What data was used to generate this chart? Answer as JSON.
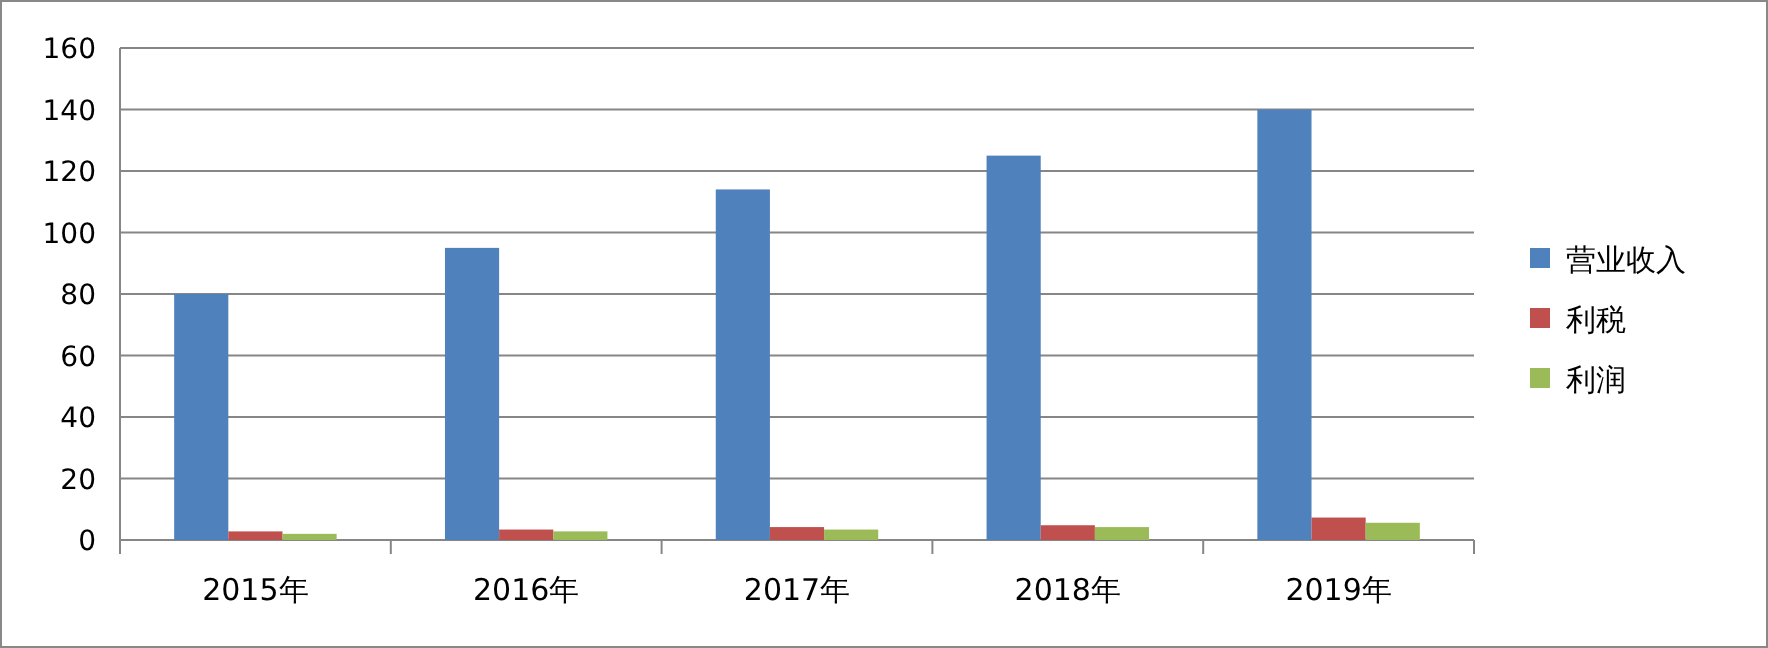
{
  "chart_data": {
    "type": "bar",
    "categories": [
      "2015年",
      "2016年",
      "2017年",
      "2018年",
      "2019年"
    ],
    "series": [
      {
        "name": "营业收入",
        "color": "#4f81bd",
        "values": [
          80,
          95,
          114,
          125,
          140
        ]
      },
      {
        "name": "利税",
        "color": "#c0504d",
        "values": [
          2.8,
          3.4,
          4.2,
          4.8,
          7.3
        ]
      },
      {
        "name": "利润",
        "color": "#9bbb59",
        "values": [
          2,
          2.8,
          3.4,
          4.2,
          5.6
        ]
      }
    ],
    "ylim": [
      0,
      160
    ],
    "yticks": [
      0,
      20,
      40,
      60,
      80,
      100,
      120,
      140,
      160
    ],
    "grid": "y",
    "legend": "right"
  }
}
